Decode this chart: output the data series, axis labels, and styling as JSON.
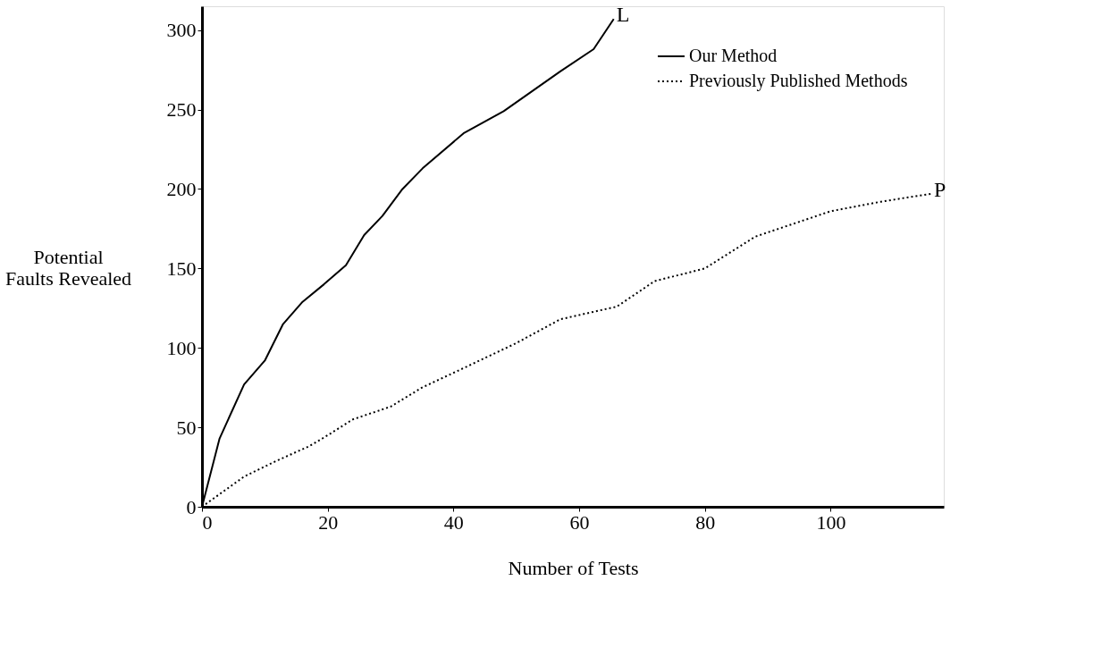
{
  "chart_data": {
    "type": "line",
    "xlabel": "Number of Tests",
    "ylabel": "Potential\nFaults Revealed",
    "xlim": [
      0,
      118
    ],
    "ylim": [
      0,
      315
    ],
    "xticks": [
      0,
      20,
      40,
      60,
      80,
      100
    ],
    "yticks": [
      0,
      50,
      100,
      150,
      200,
      250,
      300
    ],
    "grid": false,
    "legend": "top right",
    "marker": "none",
    "series": [
      {
        "name": "Our Method",
        "color": "#000000",
        "line_style": "solid",
        "x": [
          0,
          2.8,
          6.7,
          10,
          12.9,
          16,
          19.4,
          22.9,
          25.8,
          28.7,
          31.9,
          35.1,
          41.6,
          48,
          57,
          62.3,
          65.5
        ],
        "values": [
          0,
          43,
          77,
          92,
          115,
          129,
          140,
          152,
          171,
          183,
          200,
          213,
          235,
          249,
          274,
          288,
          307
        ]
      },
      {
        "name": "Previously Published Methods",
        "color": "#000000",
        "line_style": "dotted",
        "x": [
          0,
          6.7,
          11.9,
          17,
          20,
          24,
          30,
          35,
          42,
          50,
          57,
          66,
          72,
          80,
          88,
          100,
          108,
          116
        ],
        "values": [
          0,
          19,
          29,
          38,
          45,
          55,
          63,
          75,
          88,
          103,
          118,
          126,
          142,
          150,
          170,
          186,
          192,
          197
        ]
      }
    ],
    "annotations": [
      {
        "text": "L",
        "x": 65.5,
        "y": 307
      },
      {
        "text": "P",
        "x": 116,
        "y": 197
      }
    ]
  }
}
